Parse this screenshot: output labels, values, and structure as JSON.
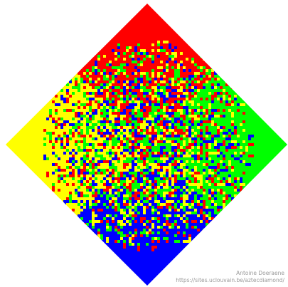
{
  "figure": {
    "subject": "Aztec diamond random domino tiling",
    "colors": {
      "north": "#ff0000",
      "east": "#00ff00",
      "south": "#0000ff",
      "west": "#ffff00",
      "background": "#ffffff"
    }
  },
  "credits": {
    "author": "Antoine Doeraene",
    "url": "https://sites.uclouvain.be/aztecdiamond/"
  }
}
